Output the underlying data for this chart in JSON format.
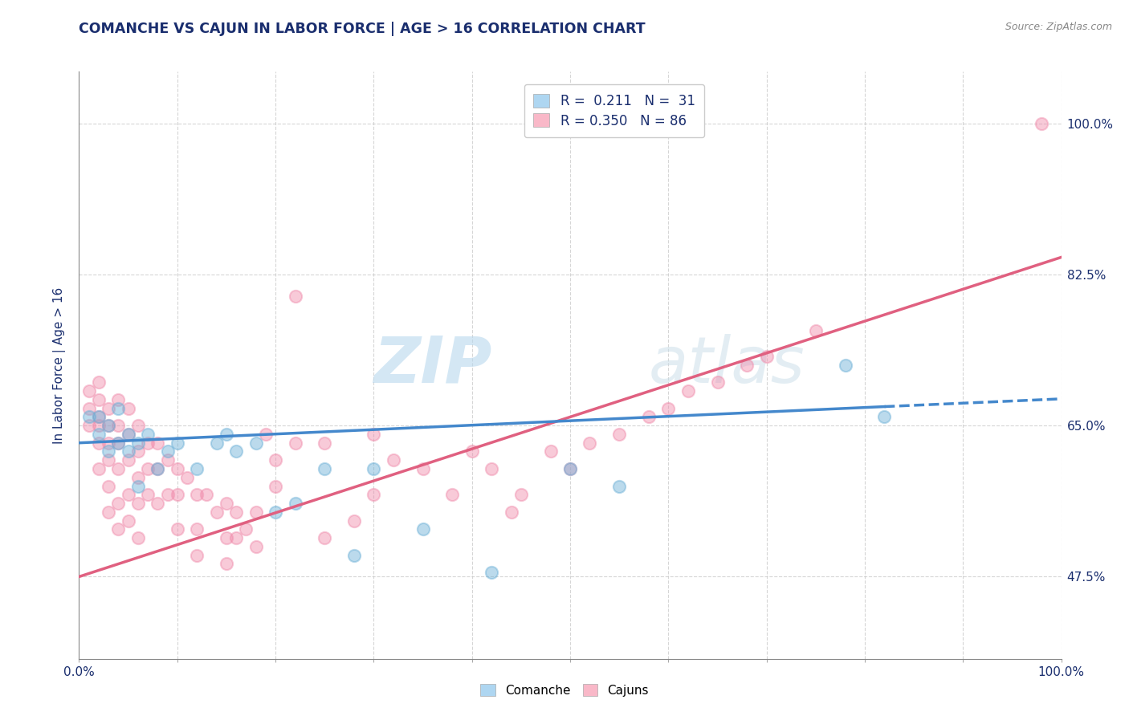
{
  "title": "COMANCHE VS CAJUN IN LABOR FORCE | AGE > 16 CORRELATION CHART",
  "source": "Source: ZipAtlas.com",
  "ylabel": "In Labor Force | Age > 16",
  "ytick_labels": [
    "47.5%",
    "65.0%",
    "82.5%",
    "100.0%"
  ],
  "ytick_values": [
    0.475,
    0.65,
    0.825,
    1.0
  ],
  "comanche_color": "#6aafd6",
  "cajun_color": "#f08aaa",
  "title_color": "#1a2e6e",
  "source_color": "#888888",
  "background_color": "#ffffff",
  "grid_color": "#cccccc",
  "comanche_scatter": [
    [
      0.01,
      0.66
    ],
    [
      0.02,
      0.64
    ],
    [
      0.02,
      0.66
    ],
    [
      0.03,
      0.62
    ],
    [
      0.03,
      0.65
    ],
    [
      0.04,
      0.63
    ],
    [
      0.04,
      0.67
    ],
    [
      0.05,
      0.64
    ],
    [
      0.05,
      0.62
    ],
    [
      0.06,
      0.63
    ],
    [
      0.06,
      0.58
    ],
    [
      0.07,
      0.64
    ],
    [
      0.08,
      0.6
    ],
    [
      0.09,
      0.62
    ],
    [
      0.1,
      0.63
    ],
    [
      0.12,
      0.6
    ],
    [
      0.14,
      0.63
    ],
    [
      0.15,
      0.64
    ],
    [
      0.16,
      0.62
    ],
    [
      0.18,
      0.63
    ],
    [
      0.2,
      0.55
    ],
    [
      0.22,
      0.56
    ],
    [
      0.25,
      0.6
    ],
    [
      0.28,
      0.5
    ],
    [
      0.3,
      0.6
    ],
    [
      0.35,
      0.53
    ],
    [
      0.42,
      0.48
    ],
    [
      0.5,
      0.6
    ],
    [
      0.55,
      0.58
    ],
    [
      0.78,
      0.72
    ],
    [
      0.82,
      0.66
    ]
  ],
  "cajun_scatter": [
    [
      0.01,
      0.67
    ],
    [
      0.01,
      0.69
    ],
    [
      0.01,
      0.65
    ],
    [
      0.02,
      0.68
    ],
    [
      0.02,
      0.65
    ],
    [
      0.02,
      0.63
    ],
    [
      0.02,
      0.66
    ],
    [
      0.02,
      0.7
    ],
    [
      0.02,
      0.6
    ],
    [
      0.03,
      0.67
    ],
    [
      0.03,
      0.65
    ],
    [
      0.03,
      0.63
    ],
    [
      0.03,
      0.61
    ],
    [
      0.03,
      0.58
    ],
    [
      0.03,
      0.55
    ],
    [
      0.04,
      0.68
    ],
    [
      0.04,
      0.65
    ],
    [
      0.04,
      0.63
    ],
    [
      0.04,
      0.6
    ],
    [
      0.04,
      0.56
    ],
    [
      0.04,
      0.53
    ],
    [
      0.05,
      0.67
    ],
    [
      0.05,
      0.64
    ],
    [
      0.05,
      0.61
    ],
    [
      0.05,
      0.57
    ],
    [
      0.05,
      0.54
    ],
    [
      0.06,
      0.65
    ],
    [
      0.06,
      0.62
    ],
    [
      0.06,
      0.59
    ],
    [
      0.06,
      0.56
    ],
    [
      0.06,
      0.52
    ],
    [
      0.07,
      0.63
    ],
    [
      0.07,
      0.6
    ],
    [
      0.07,
      0.57
    ],
    [
      0.08,
      0.63
    ],
    [
      0.08,
      0.6
    ],
    [
      0.08,
      0.56
    ],
    [
      0.09,
      0.61
    ],
    [
      0.09,
      0.57
    ],
    [
      0.1,
      0.6
    ],
    [
      0.1,
      0.57
    ],
    [
      0.1,
      0.53
    ],
    [
      0.11,
      0.59
    ],
    [
      0.12,
      0.57
    ],
    [
      0.12,
      0.53
    ],
    [
      0.12,
      0.5
    ],
    [
      0.13,
      0.57
    ],
    [
      0.14,
      0.55
    ],
    [
      0.15,
      0.56
    ],
    [
      0.15,
      0.52
    ],
    [
      0.15,
      0.49
    ],
    [
      0.16,
      0.55
    ],
    [
      0.16,
      0.52
    ],
    [
      0.17,
      0.53
    ],
    [
      0.18,
      0.55
    ],
    [
      0.18,
      0.51
    ],
    [
      0.19,
      0.64
    ],
    [
      0.2,
      0.58
    ],
    [
      0.2,
      0.61
    ],
    [
      0.22,
      0.63
    ],
    [
      0.22,
      0.8
    ],
    [
      0.25,
      0.63
    ],
    [
      0.25,
      0.52
    ],
    [
      0.28,
      0.54
    ],
    [
      0.3,
      0.64
    ],
    [
      0.3,
      0.57
    ],
    [
      0.32,
      0.61
    ],
    [
      0.35,
      0.6
    ],
    [
      0.38,
      0.57
    ],
    [
      0.4,
      0.62
    ],
    [
      0.42,
      0.6
    ],
    [
      0.44,
      0.55
    ],
    [
      0.45,
      0.57
    ],
    [
      0.48,
      0.62
    ],
    [
      0.5,
      0.6
    ],
    [
      0.52,
      0.63
    ],
    [
      0.55,
      0.64
    ],
    [
      0.58,
      0.66
    ],
    [
      0.6,
      0.67
    ],
    [
      0.62,
      0.69
    ],
    [
      0.65,
      0.7
    ],
    [
      0.68,
      0.72
    ],
    [
      0.7,
      0.73
    ],
    [
      0.75,
      0.76
    ],
    [
      0.98,
      1.0
    ]
  ],
  "comanche_trendline": [
    [
      0.0,
      0.63
    ],
    [
      0.82,
      0.672
    ]
  ],
  "comanche_trendline_ext": [
    [
      0.82,
      0.672
    ],
    [
      1.0,
      0.681
    ]
  ],
  "cajun_trendline": [
    [
      0.0,
      0.475
    ],
    [
      1.0,
      0.845
    ]
  ],
  "xmin": 0.0,
  "xmax": 1.0,
  "ymin": 0.38,
  "ymax": 1.06,
  "watermark": "ZIPatlas",
  "watermark_zip": "ZIP",
  "watermark_atlas": "atlas"
}
